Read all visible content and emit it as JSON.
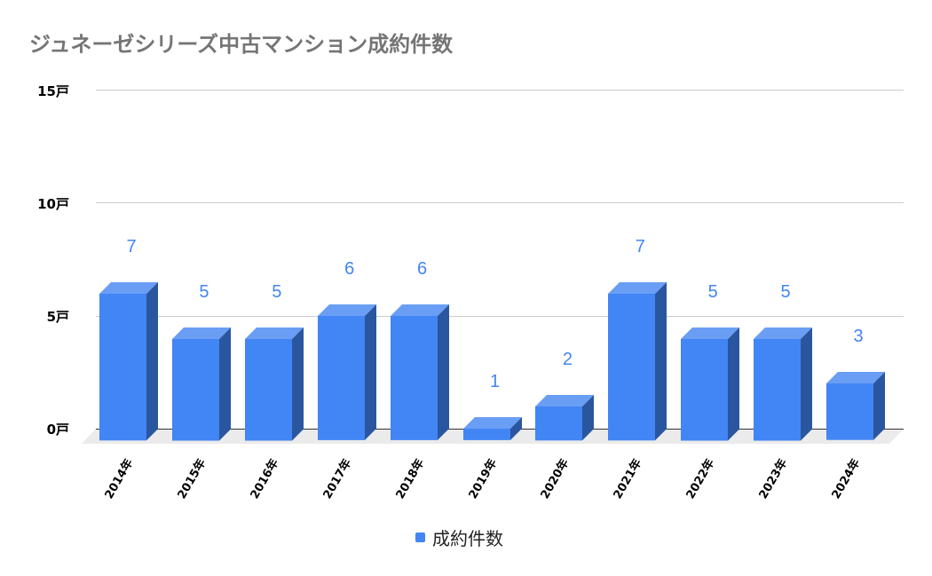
{
  "title": "ジュネーゼシリーズ中古マンション成約件数",
  "y_ticks": [
    "15戸",
    "10戸",
    "5戸",
    "0戸"
  ],
  "legend": {
    "label": "成約件数",
    "color": "#4285f4"
  },
  "colors": {
    "bar_front": "#4285f4",
    "bar_side": "#2a56a0",
    "bar_top": "#6a9ef5",
    "value_label": "#4285f4"
  },
  "chart_data": {
    "type": "bar",
    "title": "ジュネーゼシリーズ中古マンション成約件数",
    "categories": [
      "2014年",
      "2015年",
      "2016年",
      "2017年",
      "2018年",
      "2019年",
      "2020年",
      "2021年",
      "2022年",
      "2023年",
      "2024年"
    ],
    "series": [
      {
        "name": "成約件数",
        "values": [
          7,
          5,
          5,
          6,
          6,
          1,
          2,
          7,
          5,
          5,
          3
        ]
      }
    ],
    "value_labels": [
      "7",
      "5",
      "5",
      "6",
      "6",
      "1",
      "2",
      "7",
      "5",
      "5",
      "3"
    ],
    "xlabel": "",
    "ylabel": "",
    "y_tick_labels": [
      "0戸",
      "5戸",
      "10戸",
      "15戸"
    ],
    "ylim": [
      0,
      15
    ],
    "grid": true,
    "legend_position": "bottom",
    "style": "3d"
  }
}
